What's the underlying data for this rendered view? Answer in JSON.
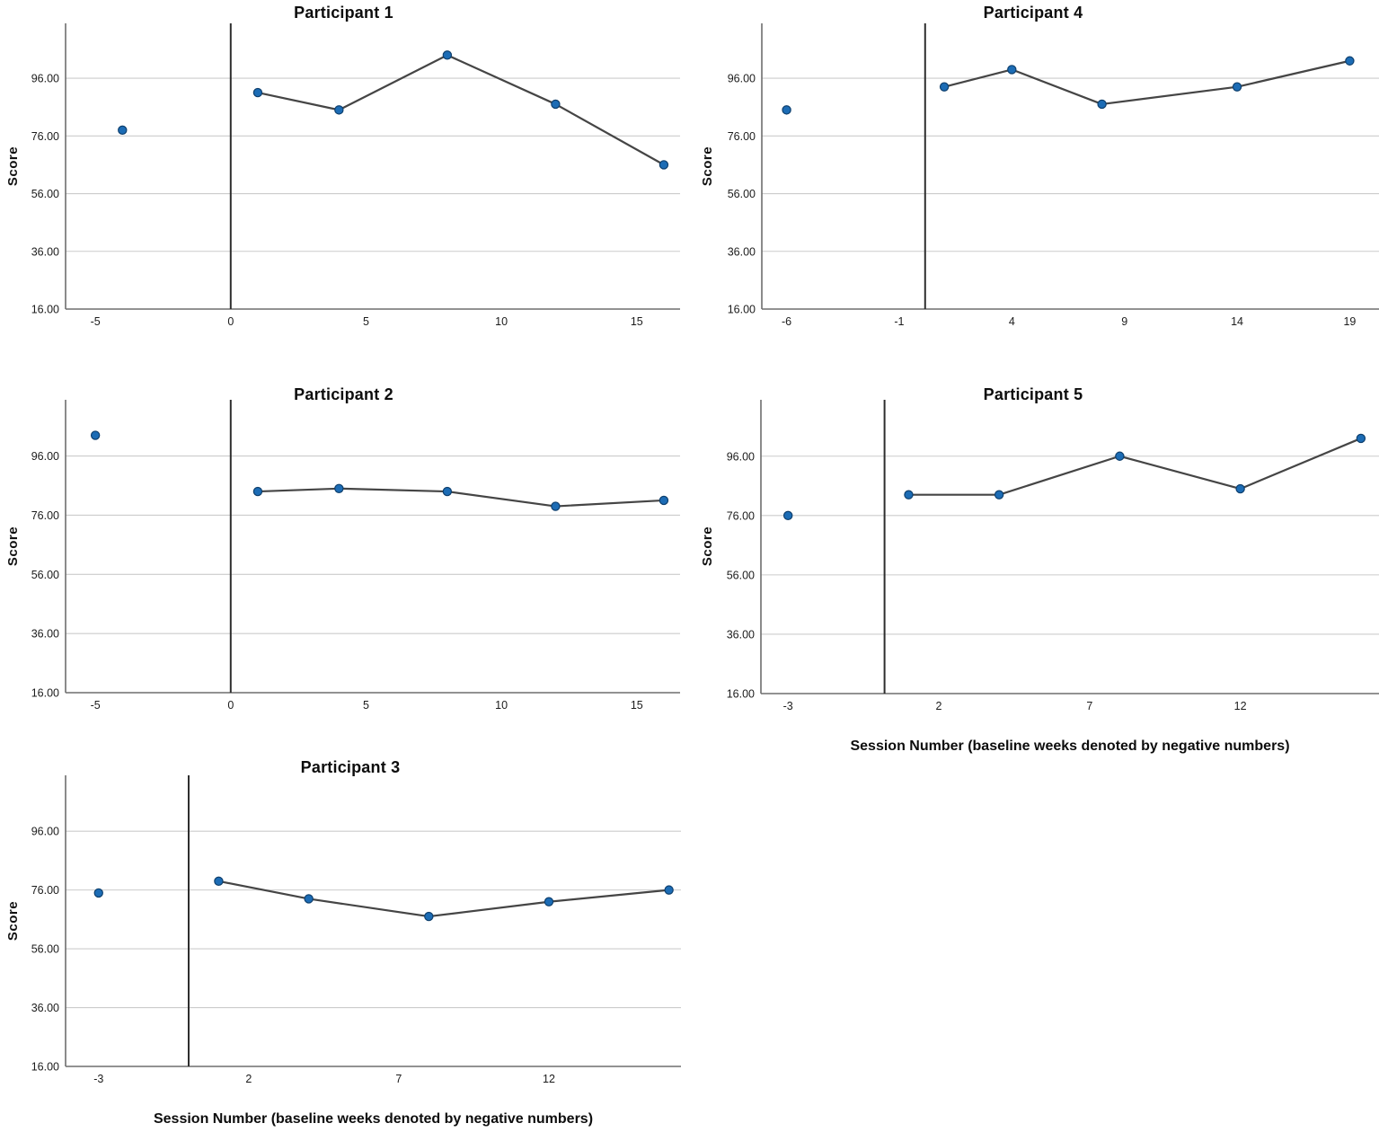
{
  "figure": {
    "ylabel": "Score",
    "xlabel": "Session Number (baseline weeks denoted by negative numbers)",
    "colors": {
      "marker_fill": "#1c6cb5",
      "marker_edge": "#0e3f6d",
      "line": "#454545",
      "grid": "#cccccc",
      "axis": "#6e6e6e",
      "phase_line": "#2e2e2e",
      "text": "#1a1a1a"
    }
  },
  "chart_data": [
    {
      "type": "scatter",
      "title": "Participant 1",
      "ylabel": "Score",
      "xlabel": "",
      "xlim": [
        -6.1,
        16.6
      ],
      "ylim": [
        16,
        115
      ],
      "grid": "horizontal",
      "phase_line_x": 0,
      "xticks": [
        -5,
        0,
        5,
        10,
        15
      ],
      "yticks": [
        {
          "value": 16,
          "label": "16.00"
        },
        {
          "value": 36,
          "label": "36.00"
        },
        {
          "value": 56,
          "label": "56.00"
        },
        {
          "value": 76,
          "label": "76.00"
        },
        {
          "value": 96,
          "label": "96.00"
        }
      ],
      "baseline": [
        {
          "x": -4,
          "y": 78
        }
      ],
      "intervention": [
        {
          "x": 1,
          "y": 91
        },
        {
          "x": 4,
          "y": 85
        },
        {
          "x": 8,
          "y": 104
        },
        {
          "x": 12,
          "y": 87
        },
        {
          "x": 16,
          "y": 66
        }
      ]
    },
    {
      "type": "scatter",
      "title": "Participant 2",
      "ylabel": "Score",
      "xlabel": "",
      "xlim": [
        -6.1,
        16.6
      ],
      "ylim": [
        16,
        115
      ],
      "grid": "horizontal",
      "phase_line_x": 0,
      "xticks": [
        -5,
        0,
        5,
        10,
        15
      ],
      "yticks": [
        {
          "value": 16,
          "label": "16.00"
        },
        {
          "value": 36,
          "label": "36.00"
        },
        {
          "value": 56,
          "label": "56.00"
        },
        {
          "value": 76,
          "label": "76.00"
        },
        {
          "value": 96,
          "label": "96.00"
        }
      ],
      "baseline": [
        {
          "x": -5,
          "y": 103
        }
      ],
      "intervention": [
        {
          "x": 1,
          "y": 84
        },
        {
          "x": 4,
          "y": 85
        },
        {
          "x": 8,
          "y": 84
        },
        {
          "x": 12,
          "y": 79
        },
        {
          "x": 16,
          "y": 81
        }
      ]
    },
    {
      "type": "scatter",
      "title": "Participant 3",
      "ylabel": "Score",
      "xlabel": "Session Number (baseline weeks denoted by negative numbers)",
      "xlim": [
        -4.1,
        16.4
      ],
      "ylim": [
        16,
        115
      ],
      "grid": "horizontal",
      "phase_line_x": 0,
      "xticks": [
        -3,
        2,
        7,
        12
      ],
      "yticks": [
        {
          "value": 16,
          "label": "16.00"
        },
        {
          "value": 36,
          "label": "36.00"
        },
        {
          "value": 56,
          "label": "56.00"
        },
        {
          "value": 76,
          "label": "76.00"
        },
        {
          "value": 96,
          "label": "96.00"
        }
      ],
      "baseline": [
        {
          "x": -3,
          "y": 75
        }
      ],
      "intervention": [
        {
          "x": 1,
          "y": 79
        },
        {
          "x": 4,
          "y": 73
        },
        {
          "x": 8,
          "y": 67
        },
        {
          "x": 12,
          "y": 72
        },
        {
          "x": 16,
          "y": 76
        }
      ]
    },
    {
      "type": "scatter",
      "title": "Participant 4",
      "ylabel": "Score",
      "xlabel": "",
      "xlim": [
        -7.1,
        20.3
      ],
      "ylim": [
        16,
        115
      ],
      "grid": "horizontal",
      "phase_line_x": 0.15,
      "xticks": [
        -6,
        -1,
        4,
        9,
        14,
        19
      ],
      "yticks": [
        {
          "value": 16,
          "label": "16.00"
        },
        {
          "value": 36,
          "label": "36.00"
        },
        {
          "value": 56,
          "label": "56.00"
        },
        {
          "value": 76,
          "label": "76.00"
        },
        {
          "value": 96,
          "label": "96.00"
        }
      ],
      "baseline": [
        {
          "x": -6,
          "y": 85
        }
      ],
      "intervention": [
        {
          "x": 1,
          "y": 93
        },
        {
          "x": 4,
          "y": 99
        },
        {
          "x": 8,
          "y": 87
        },
        {
          "x": 14,
          "y": 93
        },
        {
          "x": 19,
          "y": 102
        }
      ]
    },
    {
      "type": "scatter",
      "title": "Participant 5",
      "ylabel": "Score",
      "xlabel": "Session Number (baseline weeks denoted by negative numbers)",
      "xlim": [
        -3.9,
        16.6
      ],
      "ylim": [
        16,
        115
      ],
      "grid": "horizontal",
      "phase_line_x": 0.2,
      "xticks": [
        -3,
        2,
        7,
        12
      ],
      "yticks": [
        {
          "value": 16,
          "label": "16.00"
        },
        {
          "value": 36,
          "label": "36.00"
        },
        {
          "value": 56,
          "label": "56.00"
        },
        {
          "value": 76,
          "label": "76.00"
        },
        {
          "value": 96,
          "label": "96.00"
        }
      ],
      "baseline": [
        {
          "x": -3,
          "y": 76
        }
      ],
      "intervention": [
        {
          "x": 1,
          "y": 83
        },
        {
          "x": 4,
          "y": 83
        },
        {
          "x": 8,
          "y": 96
        },
        {
          "x": 12,
          "y": 85
        },
        {
          "x": 16,
          "y": 102
        }
      ]
    }
  ]
}
